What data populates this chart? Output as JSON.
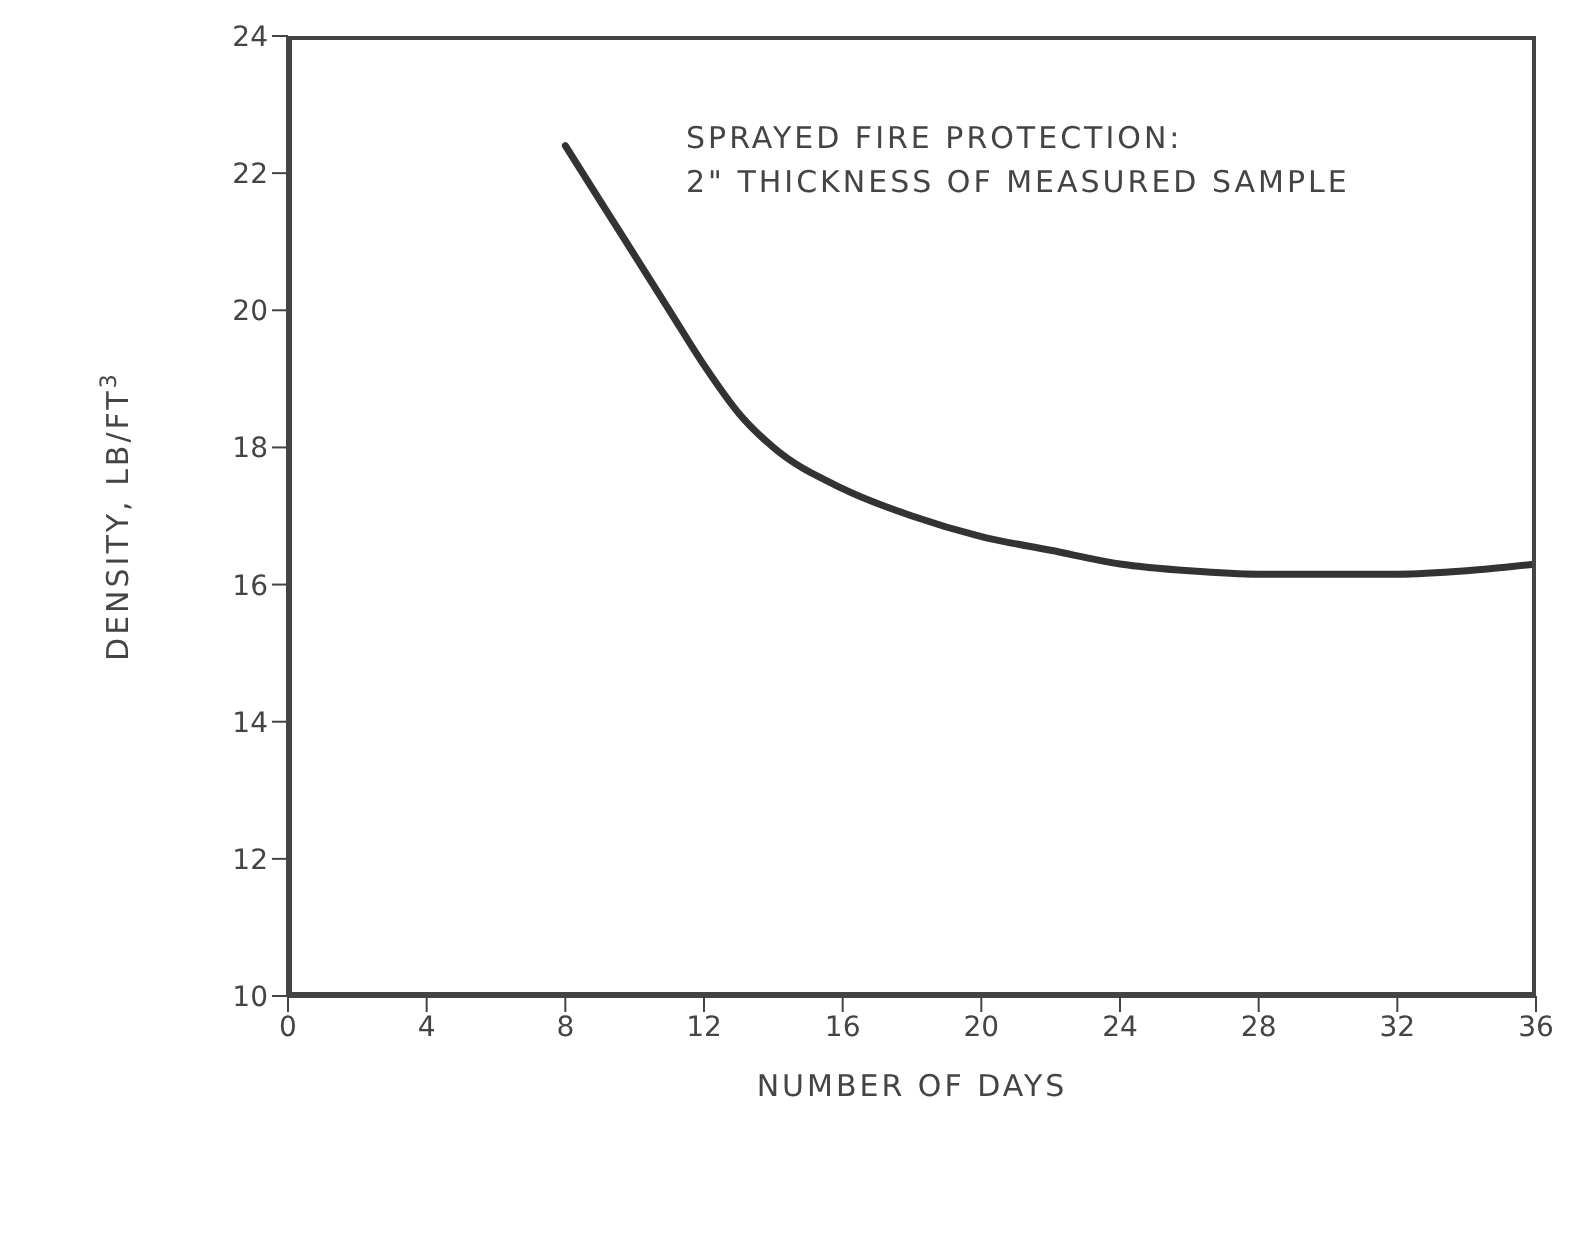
{
  "chart_data": {
    "type": "line",
    "xlabel": "NUMBER OF DAYS",
    "ylabel": "DENSITY, LB/FT$^{3}$",
    "annotations": [
      "SPRAYED FIRE PROTECTION:\n2\" THICKNESS OF MEASURED SAMPLE"
    ],
    "x": [
      8,
      9,
      10,
      11,
      12,
      13,
      14,
      16,
      18,
      20,
      22,
      24,
      26,
      28,
      30,
      32,
      34,
      36
    ],
    "series": [
      {
        "color": "#333333",
        "values": [
          22.4,
          21.6,
          20.8,
          20.0,
          19.2,
          18.5,
          18.0,
          17.4,
          17.0,
          16.7,
          16.5,
          16.3,
          16.2,
          16.15,
          16.15,
          16.15,
          16.2,
          16.3
        ]
      }
    ],
    "xlim": [
      0,
      36
    ],
    "xticks": [
      0,
      4,
      8,
      12,
      16,
      20,
      24,
      28,
      32,
      36
    ],
    "ylim": [
      10,
      24
    ],
    "yticks": [
      10,
      12,
      14,
      16,
      18,
      20,
      22,
      24
    ],
    "grid": false,
    "legend": false,
    "marker": "none",
    "line_style": "solid"
  }
}
